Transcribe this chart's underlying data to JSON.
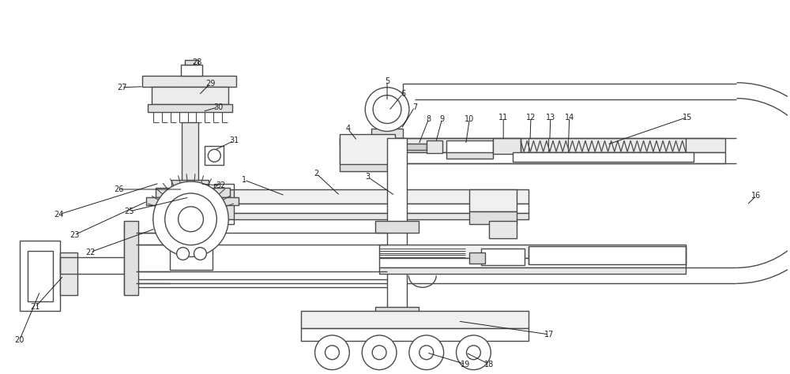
{
  "bg_color": "#ffffff",
  "line_color": "#4a4a4a",
  "line_width": 1.0,
  "label_fontsize": 7.0,
  "label_color": "#222222",
  "fig_width": 10.0,
  "fig_height": 4.74
}
